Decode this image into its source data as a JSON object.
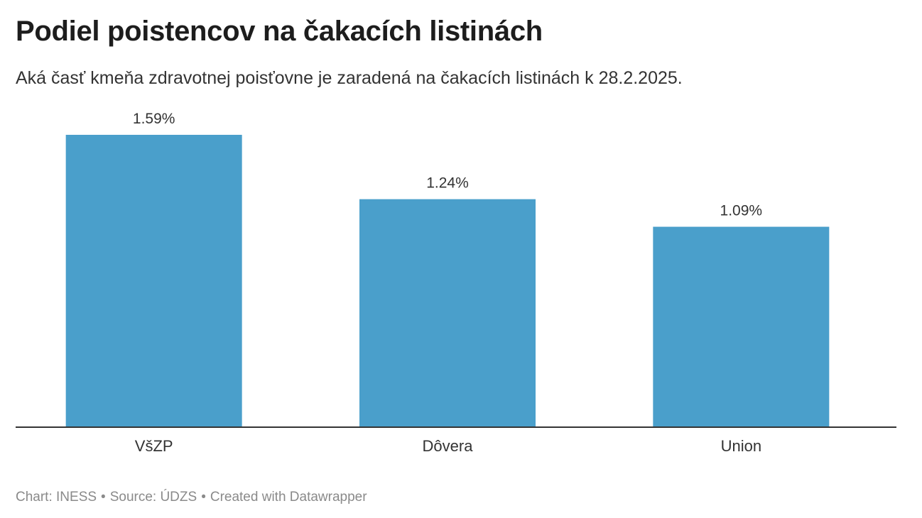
{
  "header": {
    "title": "Podiel poistencov na čakacích listinách",
    "subtitle": "Aká časť kmeňa zdravotnej poisťovne je zaradená na čakacích listinách k 28.2.2025."
  },
  "footer": {
    "chart_credit": "Chart: INESS",
    "source": "Source: ÚDZS",
    "created_with": "Created with Datawrapper",
    "separator": "•"
  },
  "colors": {
    "bar": "#4a9fcb",
    "axis": "#333333"
  },
  "chart_data": {
    "type": "bar",
    "title": "Podiel poistencov na čakacích listinách",
    "subtitle": "Aká časť kmeňa zdravotnej poisťovne je zaradená na čakacích listinách k 28.2.2025.",
    "categories": [
      "VšZP",
      "Dôvera",
      "Union"
    ],
    "values": [
      1.59,
      1.24,
      1.09
    ],
    "value_labels": [
      "1.59%",
      "1.24%",
      "1.09%"
    ],
    "unit": "%",
    "ylim": [
      0,
      1.59
    ],
    "grid": false,
    "legend": "none"
  }
}
